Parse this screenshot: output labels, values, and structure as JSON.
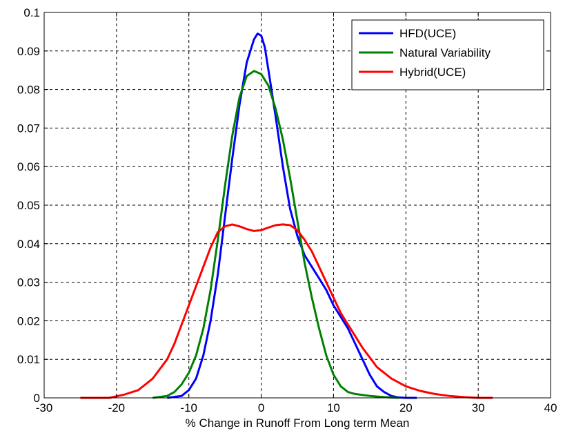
{
  "chart_data": {
    "type": "line",
    "title": "",
    "xlabel": "% Change in Runoff From Long term Mean",
    "ylabel": "",
    "xlim": [
      -30,
      40
    ],
    "ylim": [
      0,
      0.1
    ],
    "x_ticks": [
      -30,
      -20,
      -10,
      0,
      10,
      20,
      30,
      40
    ],
    "x_tick_labels": [
      "-30",
      "-20",
      "-10",
      "0",
      "10",
      "20",
      "30",
      "40"
    ],
    "y_ticks": [
      0,
      0.01,
      0.02,
      0.03,
      0.04,
      0.05,
      0.06,
      0.07,
      0.08,
      0.09,
      0.1
    ],
    "y_tick_labels": [
      "0",
      "0.01",
      "0.02",
      "0.03",
      "0.04",
      "0.05",
      "0.06",
      "0.07",
      "0.08",
      "0.09",
      "0.1"
    ],
    "grid": true,
    "legend_position": "top-right",
    "series": [
      {
        "name": "HFD(UCE)",
        "color": "#0000ff",
        "points": [
          [
            -13,
            0
          ],
          [
            -11,
            0.0005
          ],
          [
            -10,
            0.002
          ],
          [
            -9,
            0.005
          ],
          [
            -8,
            0.011
          ],
          [
            -7,
            0.02
          ],
          [
            -6,
            0.032
          ],
          [
            -5,
            0.047
          ],
          [
            -4,
            0.062
          ],
          [
            -3,
            0.076
          ],
          [
            -2,
            0.087
          ],
          [
            -1,
            0.093
          ],
          [
            -0.5,
            0.0945
          ],
          [
            0,
            0.094
          ],
          [
            0.5,
            0.091
          ],
          [
            1,
            0.085
          ],
          [
            2,
            0.073
          ],
          [
            3,
            0.06
          ],
          [
            4,
            0.049
          ],
          [
            5,
            0.042
          ],
          [
            6,
            0.037
          ],
          [
            7,
            0.034
          ],
          [
            8,
            0.031
          ],
          [
            9,
            0.028
          ],
          [
            10,
            0.024
          ],
          [
            11,
            0.021
          ],
          [
            12,
            0.018
          ],
          [
            13,
            0.014
          ],
          [
            14,
            0.01
          ],
          [
            15,
            0.006
          ],
          [
            16,
            0.003
          ],
          [
            17,
            0.0015
          ],
          [
            18,
            0.0005
          ],
          [
            19,
            0.0001
          ],
          [
            20,
            0
          ],
          [
            21.5,
            0
          ]
        ]
      },
      {
        "name": "Natural Variability",
        "color": "#008000",
        "points": [
          [
            -15,
            0
          ],
          [
            -13,
            0.0005
          ],
          [
            -12,
            0.0015
          ],
          [
            -11,
            0.0035
          ],
          [
            -10,
            0.0065
          ],
          [
            -9,
            0.011
          ],
          [
            -8,
            0.018
          ],
          [
            -7,
            0.028
          ],
          [
            -6,
            0.041
          ],
          [
            -5,
            0.055
          ],
          [
            -4,
            0.068
          ],
          [
            -3,
            0.078
          ],
          [
            -2,
            0.0835
          ],
          [
            -1,
            0.0848
          ],
          [
            0,
            0.084
          ],
          [
            1,
            0.081
          ],
          [
            2,
            0.075
          ],
          [
            3,
            0.067
          ],
          [
            4,
            0.057
          ],
          [
            5,
            0.046
          ],
          [
            6,
            0.035
          ],
          [
            7,
            0.026
          ],
          [
            8,
            0.018
          ],
          [
            9,
            0.011
          ],
          [
            10,
            0.006
          ],
          [
            11,
            0.003
          ],
          [
            12,
            0.0015
          ],
          [
            13,
            0.001
          ],
          [
            15,
            0.0005
          ],
          [
            17,
            0.0002
          ],
          [
            19,
            0
          ]
        ]
      },
      {
        "name": "Hybrid(UCE)",
        "color": "#ff0000",
        "points": [
          [
            -25,
            0
          ],
          [
            -21,
            0
          ],
          [
            -19,
            0.0008
          ],
          [
            -17,
            0.002
          ],
          [
            -16,
            0.0035
          ],
          [
            -15,
            0.005
          ],
          [
            -14,
            0.0075
          ],
          [
            -13,
            0.01
          ],
          [
            -12,
            0.014
          ],
          [
            -11,
            0.019
          ],
          [
            -10,
            0.024
          ],
          [
            -9,
            0.029
          ],
          [
            -8,
            0.034
          ],
          [
            -7,
            0.039
          ],
          [
            -6,
            0.043
          ],
          [
            -5,
            0.0445
          ],
          [
            -4,
            0.045
          ],
          [
            -3,
            0.0445
          ],
          [
            -2,
            0.0438
          ],
          [
            -1,
            0.0433
          ],
          [
            0,
            0.0435
          ],
          [
            1,
            0.0442
          ],
          [
            2,
            0.0448
          ],
          [
            3,
            0.045
          ],
          [
            4,
            0.0448
          ],
          [
            5,
            0.0435
          ],
          [
            6,
            0.041
          ],
          [
            7,
            0.038
          ],
          [
            8,
            0.034
          ],
          [
            9,
            0.03
          ],
          [
            10,
            0.026
          ],
          [
            11,
            0.022
          ],
          [
            12,
            0.019
          ],
          [
            13,
            0.016
          ],
          [
            14,
            0.013
          ],
          [
            15,
            0.0105
          ],
          [
            16,
            0.008
          ],
          [
            17,
            0.0065
          ],
          [
            18,
            0.005
          ],
          [
            19,
            0.004
          ],
          [
            20,
            0.003
          ],
          [
            22,
            0.0018
          ],
          [
            24,
            0.001
          ],
          [
            26,
            0.0005
          ],
          [
            28,
            0.0002
          ],
          [
            30,
            0
          ],
          [
            32,
            0
          ]
        ]
      }
    ]
  }
}
